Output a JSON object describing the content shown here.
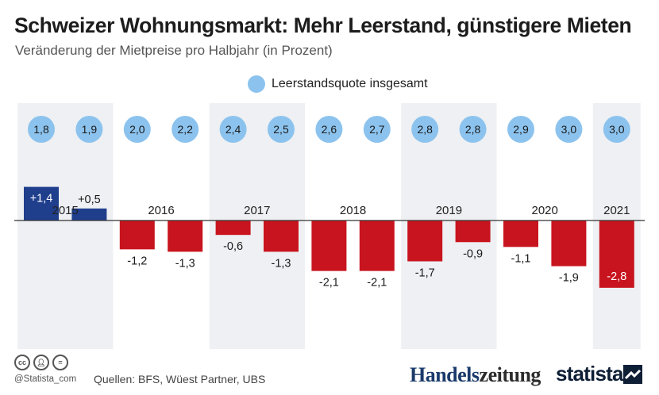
{
  "title": "Schweizer Wohnungsmarkt: Mehr Leerstand, günstigere Mieten",
  "subtitle": "Veränderung der Mietpreise pro Halbjahr (in Prozent)",
  "legend_label": "Leerstandsquote insgesamt",
  "colors": {
    "positive_bar": "#1f3e8c",
    "negative_bar": "#c8141e",
    "bubble": "#8cc3ee",
    "shade": "#eef0f3"
  },
  "chart_data": {
    "type": "bar",
    "title": "Schweizer Wohnungsmarkt: Mehr Leerstand, günstigere Mieten",
    "subtitle": "Veränderung der Mietpreise pro Halbjahr (in Prozent)",
    "years": [
      "2015",
      "2016",
      "2017",
      "2018",
      "2019",
      "2020",
      "2021"
    ],
    "series": [
      {
        "name": "",
        "values": [
          1.4,
          0.5,
          -1.2,
          -1.3,
          -0.6,
          -1.3,
          -2.1,
          -2.1,
          -1.7,
          -0.9,
          -1.1,
          -1.9,
          -2.8
        ],
        "labels": [
          "+1,4",
          "+0,5",
          "-1,2",
          "-1,3",
          "-0,6",
          "-1,3",
          "-2,1",
          "-2,1",
          "-1,7",
          "-0,9",
          "-1,1",
          "-1,9",
          "-2,8"
        ]
      },
      {
        "name": "Leerstandsquote insgesamt",
        "values": [
          1.8,
          1.9,
          2.0,
          2.2,
          2.4,
          2.5,
          2.6,
          2.7,
          2.8,
          2.8,
          2.9,
          3.0,
          3.0
        ],
        "labels": [
          "1,8",
          "1,9",
          "2,0",
          "2,2",
          "2,4",
          "2,5",
          "2,6",
          "2,7",
          "2,8",
          "2,8",
          "2,9",
          "3,0",
          "3,0"
        ]
      }
    ],
    "shaded_years": [
      "2015",
      "2017",
      "2019",
      "2021"
    ],
    "legend_position": "top-center",
    "grid": false
  },
  "footer": {
    "handle": "@Statista_com",
    "sources": "Quellen: BFS, Wüest Partner, UBS",
    "cc_icons": [
      "cc",
      "by",
      "nd"
    ]
  },
  "logos": {
    "handelszeitung_a": "Handels",
    "handelszeitung_b": "zeitung",
    "statista": "statista"
  }
}
